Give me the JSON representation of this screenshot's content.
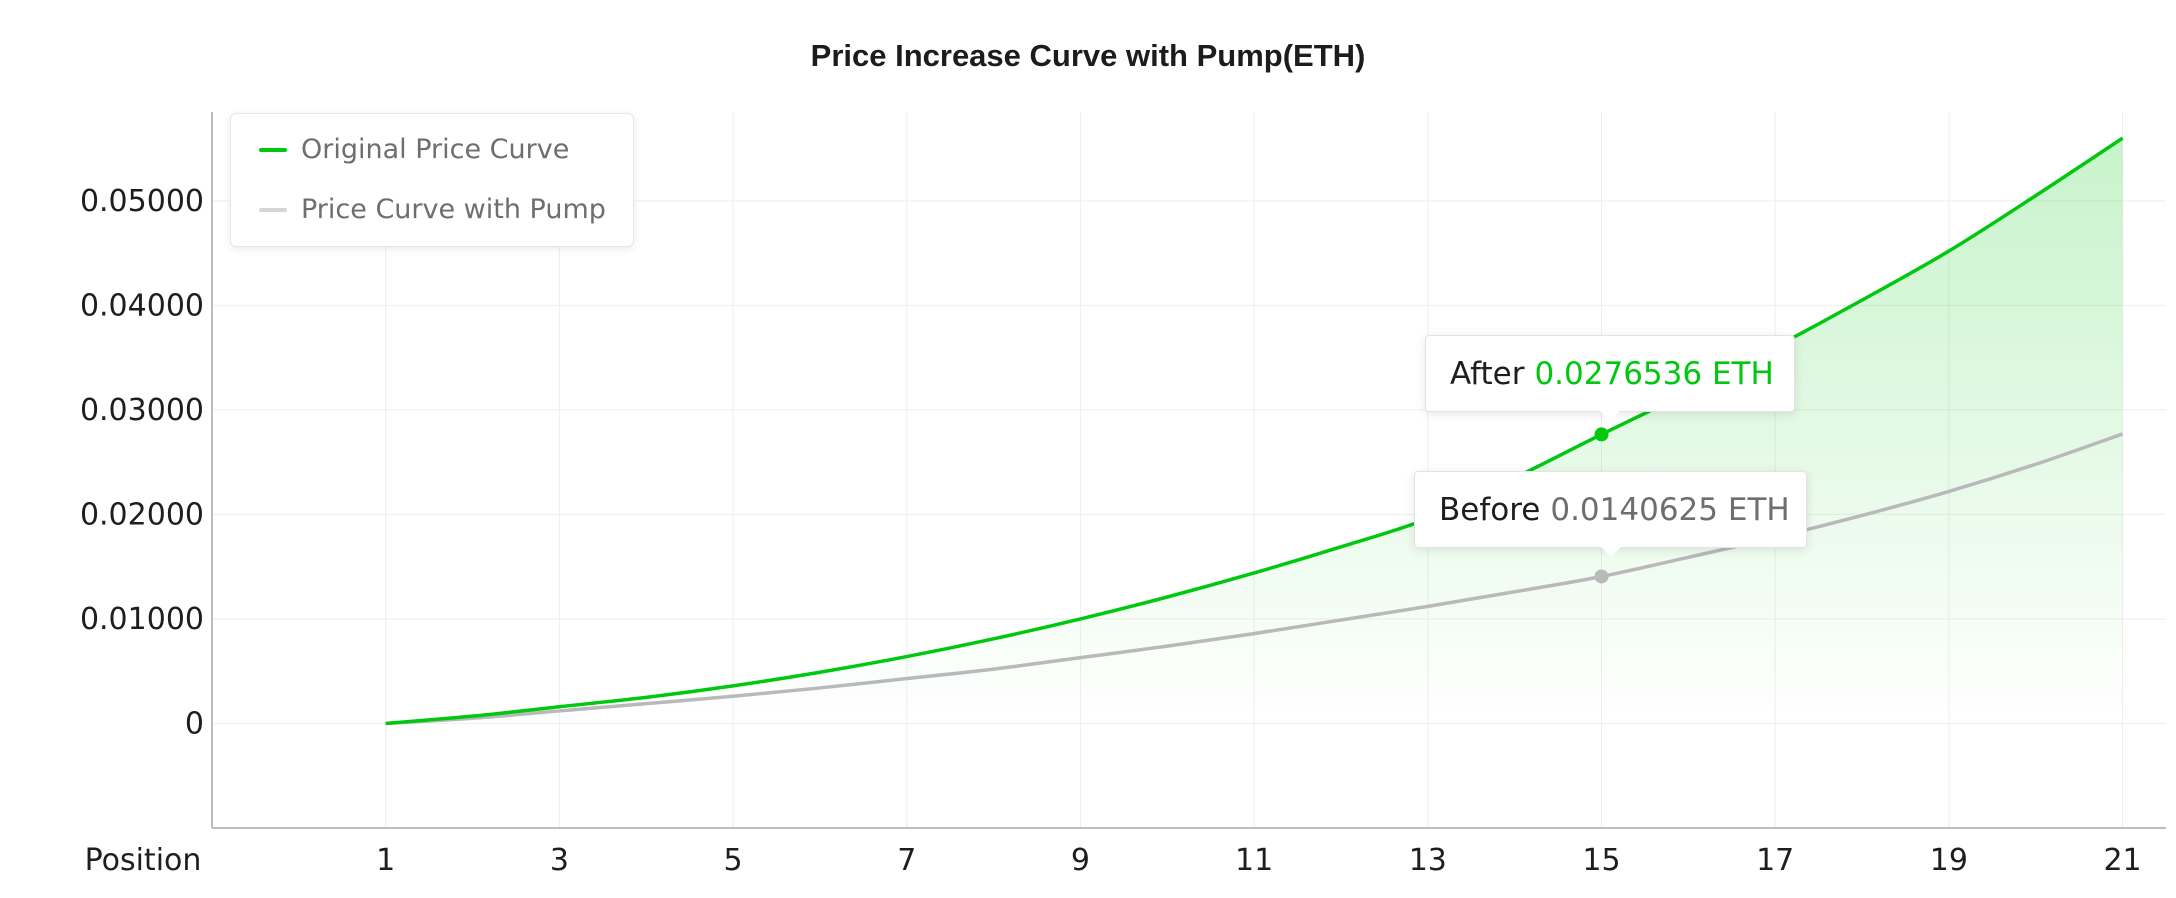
{
  "chart_data": {
    "type": "line",
    "title": "Price Increase Curve with Pump(ETH)",
    "xlabel": "Position",
    "ylabel": "",
    "x_ticks": [
      1,
      3,
      5,
      7,
      9,
      11,
      13,
      15,
      17,
      19,
      21
    ],
    "y_ticks": [
      0,
      0.01,
      0.02,
      0.03,
      0.04,
      0.05
    ],
    "y_tick_labels": [
      "0",
      "0.01000",
      "0.02000",
      "0.03000",
      "0.04000",
      "0.05000"
    ],
    "xlim": [
      -1,
      21.5
    ],
    "ylim": [
      -0.01,
      0.0585
    ],
    "grid": true,
    "legend_position": "top-left",
    "series": [
      {
        "name": "Original Price Curve",
        "color": "#00c80f",
        "x": [
          1,
          2,
          3,
          4,
          5,
          6,
          7,
          8,
          9,
          10,
          11,
          12,
          13,
          14,
          15,
          16,
          17,
          18,
          19,
          20,
          21
        ],
        "values": [
          0,
          0.0007,
          0.0016,
          0.0025,
          0.0036,
          0.0049,
          0.0064,
          0.0081,
          0.01,
          0.0121,
          0.0144,
          0.0169,
          0.0196,
          0.0235,
          0.0276536,
          0.0317,
          0.036,
          0.0405,
          0.0452,
          0.0505,
          0.056
        ]
      },
      {
        "name": "Price Curve with Pump",
        "color": "#b9b9b9",
        "x": [
          1,
          2,
          3,
          4,
          5,
          6,
          7,
          8,
          9,
          10,
          11,
          12,
          13,
          14,
          15,
          16,
          17,
          18,
          19,
          20,
          21
        ],
        "values": [
          0,
          0.0005,
          0.0012,
          0.0019,
          0.0026,
          0.0034,
          0.0043,
          0.0052,
          0.0063,
          0.0074,
          0.0086,
          0.0099,
          0.0112,
          0.0126,
          0.0140625,
          0.0159,
          0.0178,
          0.0199,
          0.0222,
          0.0248,
          0.0277
        ]
      }
    ],
    "highlight_x": 15,
    "annotations": [
      {
        "label": "After",
        "value": "0.0276536 ETH",
        "x": 15,
        "y": 0.0276536,
        "series": "Original Price Curve",
        "color": "#00c80f"
      },
      {
        "label": "Before",
        "value": "0.0140625 ETH",
        "x": 15,
        "y": 0.0140625,
        "series": "Price Curve with Pump",
        "color": "#6e6e6e"
      }
    ]
  }
}
